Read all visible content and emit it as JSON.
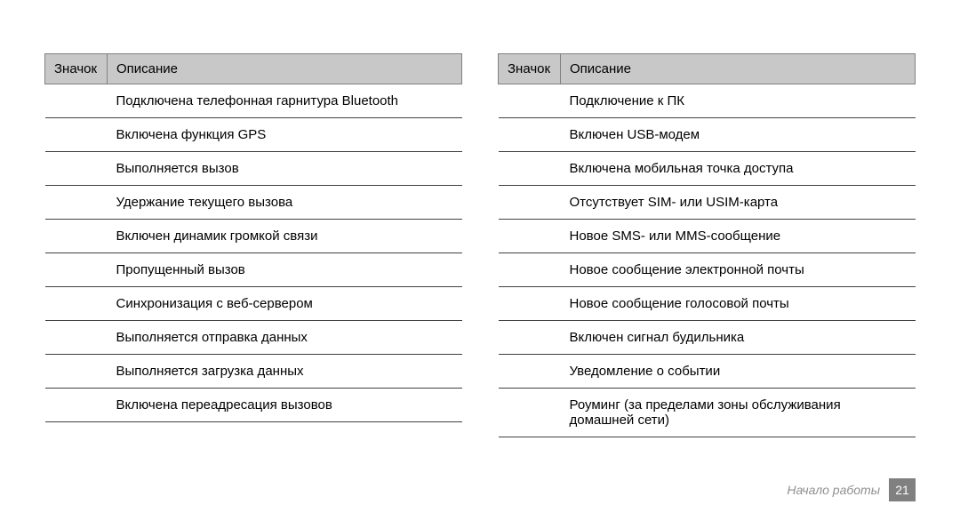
{
  "left_table": {
    "headers": {
      "icon": "Значок",
      "desc": "Описание"
    },
    "rows": [
      {
        "desc": "Подключена телефонная гарнитура Bluetooth"
      },
      {
        "desc": "Включена функция GPS"
      },
      {
        "desc": "Выполняется вызов"
      },
      {
        "desc": "Удержание текущего вызова"
      },
      {
        "desc": "Включен динамик громкой связи"
      },
      {
        "desc": "Пропущенный вызов"
      },
      {
        "desc": "Синхронизация с веб-сервером"
      },
      {
        "desc": "Выполняется отправка данных"
      },
      {
        "desc": "Выполняется загрузка данных"
      },
      {
        "desc": "Включена переадресация вызовов"
      }
    ]
  },
  "right_table": {
    "headers": {
      "icon": "Значок",
      "desc": "Описание"
    },
    "rows": [
      {
        "desc": "Подключение к ПК"
      },
      {
        "desc": "Включен USB-модем"
      },
      {
        "desc": "Включена мобильная точка доступа"
      },
      {
        "desc": "Отсутствует SIM- или USIM-карта"
      },
      {
        "desc": "Новое SMS- или MMS-сообщение"
      },
      {
        "desc": "Новое сообщение электронной почты"
      },
      {
        "desc": "Новое сообщение голосовой почты"
      },
      {
        "desc": "Включен сигнал будильника"
      },
      {
        "desc": "Уведомление о событии"
      },
      {
        "desc": "Роуминг (за пределами зоны обслуживания домашней сети)"
      }
    ]
  },
  "footer": {
    "section": "Начало работы",
    "page": "21"
  },
  "colors": {
    "header_bg": "#c8c8c8",
    "border": "#404040",
    "footer_text": "#909090",
    "footer_page_bg": "#808080",
    "footer_page_text": "#ffffff"
  }
}
